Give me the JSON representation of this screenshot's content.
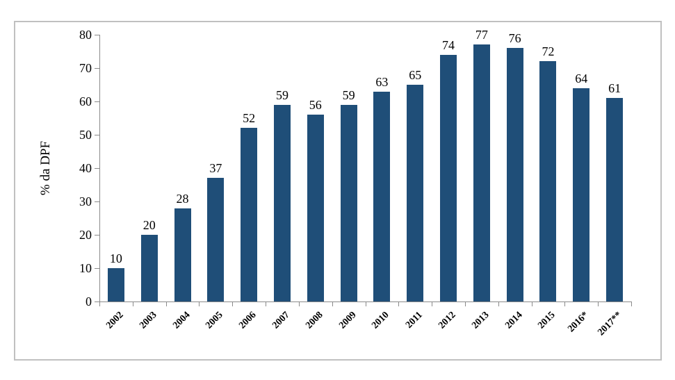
{
  "chart_data": {
    "type": "bar",
    "categories": [
      "2002",
      "2003",
      "2004",
      "2005",
      "2006",
      "2007",
      "2008",
      "2009",
      "2010",
      "2011",
      "2012",
      "2013",
      "2014",
      "2015",
      "2016*",
      "2017**"
    ],
    "values": [
      10,
      20,
      28,
      37,
      52,
      59,
      56,
      59,
      63,
      65,
      74,
      77,
      76,
      72,
      64,
      61
    ],
    "title": "",
    "xlabel": "",
    "ylabel": "% da DPF",
    "ylim": [
      0,
      80
    ],
    "ytick_step": 10,
    "ytick_labels": [
      "0",
      "10",
      "20",
      "30",
      "40",
      "50",
      "60",
      "70",
      "80"
    ],
    "grid": false,
    "legend": "none",
    "data_labels": true,
    "colors": {
      "bar": "#1f4e78",
      "axis": "#8a8a8a",
      "frame_border": "#c0c0c0",
      "text": "#000000",
      "background": "#ffffff"
    }
  }
}
